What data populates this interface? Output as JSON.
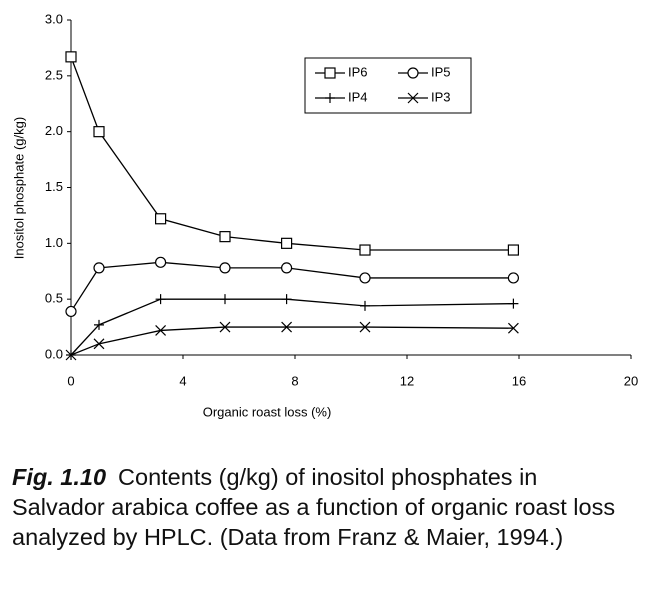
{
  "chart_data": {
    "type": "line",
    "x_label": "Organic roast loss (%)",
    "y_label": "Inositol phosphate (g/kg)",
    "x": [
      0,
      1,
      3.2,
      5.5,
      7.7,
      10.5,
      15.8
    ],
    "series": [
      {
        "name": "IP6",
        "color": "#000000",
        "marker": "square",
        "values": [
          2.67,
          2.0,
          1.22,
          1.06,
          1.0,
          0.94,
          0.94
        ]
      },
      {
        "name": "IP5",
        "color": "#000000",
        "marker": "circle",
        "values": [
          0.39,
          0.78,
          0.83,
          0.78,
          0.78,
          0.69,
          0.69
        ]
      },
      {
        "name": "IP4",
        "color": "#000000",
        "marker": "plus",
        "values": [
          0,
          0.27,
          0.5,
          0.5,
          0.5,
          0.44,
          0.46
        ]
      },
      {
        "name": "IP3",
        "color": "#000000",
        "marker": "cross",
        "values": [
          0,
          0.1,
          0.22,
          0.25,
          0.25,
          0.25,
          0.24
        ]
      }
    ],
    "xlim": [
      0,
      20
    ],
    "xticks": [
      0,
      4,
      8,
      12,
      16,
      20
    ],
    "ylim": [
      0,
      3
    ],
    "yticks": [
      {
        "value": 0,
        "label": "0.0"
      },
      {
        "value": 0.5,
        "label": "0.5"
      },
      {
        "value": 1,
        "label": "1.0"
      },
      {
        "value": 1.5,
        "label": "1.5"
      },
      {
        "value": 2,
        "label": "2.0"
      },
      {
        "value": 2.5,
        "label": "2.5"
      },
      {
        "value": 3,
        "label": "3.0"
      }
    ],
    "legend_position": "top",
    "grid": false
  },
  "caption": {
    "label": "Fig. 1.10",
    "text": "Contents (g/kg) of inositol phosphates in Salvador arabica coffee as a function of organic roast loss analyzed by HPLC. (Data from Franz & Maier, 1994.)"
  }
}
